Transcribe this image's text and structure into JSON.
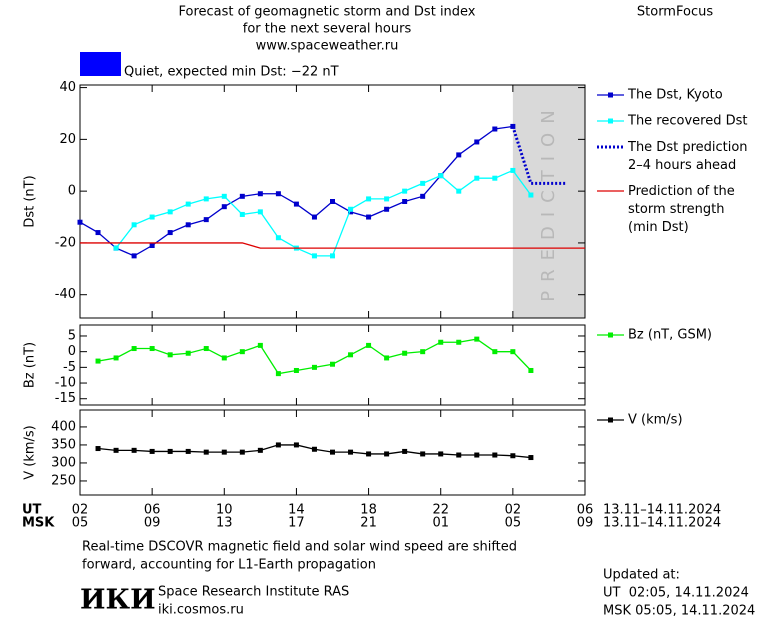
{
  "header": {
    "title_lines": [
      "Forecast of geomagnetic storm and Dst index",
      "for the next several hours",
      "www.spaceweather.ru"
    ],
    "brand": "StormFocus"
  },
  "status": {
    "color": "#0000ff",
    "text": "Quiet, expected min Dst: −22 nT"
  },
  "time_axis": {
    "ut": {
      "label": "UT",
      "range": "13.11–14.11.2024",
      "ticks": [
        {
          "value": 0,
          "label": "02"
        },
        {
          "value": 4,
          "label": "06"
        },
        {
          "value": 8,
          "label": "10"
        },
        {
          "value": 12,
          "label": "14"
        },
        {
          "value": 16,
          "label": "18"
        },
        {
          "value": 20,
          "label": "22"
        },
        {
          "value": 24,
          "label": "02"
        },
        {
          "value": 28,
          "label": "06"
        }
      ]
    },
    "msk": {
      "label": "MSK",
      "range": "13.11–14.11.2024",
      "ticks": [
        {
          "value": 0,
          "label": "05"
        },
        {
          "value": 4,
          "label": "09"
        },
        {
          "value": 8,
          "label": "13"
        },
        {
          "value": 12,
          "label": "17"
        },
        {
          "value": 16,
          "label": "21"
        },
        {
          "value": 20,
          "label": "01"
        },
        {
          "value": 24,
          "label": "05"
        },
        {
          "value": 28,
          "label": "09"
        }
      ]
    }
  },
  "chart_data": [
    {
      "type": "line",
      "y_label": "Dst (nT)",
      "xlim": [
        0,
        28
      ],
      "ylim": [
        -49,
        41
      ],
      "yticks": [
        -40,
        -20,
        0,
        20,
        40
      ],
      "prediction_zone": [
        24,
        28
      ],
      "prediction_label": "PREDICTION",
      "prediction_color": "#d9d9d9",
      "series": [
        {
          "name": "The Dst, Kyoto",
          "color": "#0000cc",
          "style": "solid",
          "marker": true,
          "x": [
            0,
            1,
            2,
            3,
            4,
            5,
            6,
            7,
            8,
            9,
            10,
            11,
            12,
            13,
            14,
            15,
            16,
            17,
            18,
            19,
            20,
            21,
            22,
            23,
            24
          ],
          "values": [
            -12,
            -16,
            -22,
            -25,
            -21,
            -16,
            -13,
            -11,
            -6,
            -2,
            -1,
            -1,
            -5,
            -10,
            -4,
            -8,
            -10,
            -7,
            -4,
            -2,
            6,
            14,
            19,
            24,
            25
          ]
        },
        {
          "name": "The recovered Dst",
          "color": "#00ffff",
          "style": "solid",
          "marker": true,
          "x": [
            2,
            3,
            4,
            5,
            6,
            7,
            8,
            9,
            10,
            11,
            12,
            13,
            14,
            15,
            16,
            17,
            18,
            19,
            20,
            21,
            22,
            23,
            24,
            25
          ],
          "values": [
            -22,
            -13,
            -10,
            -8,
            -5,
            -3,
            -2,
            -9,
            -8,
            -18,
            -22,
            -25,
            -25,
            -7,
            -3,
            -3,
            0,
            3,
            6,
            0,
            5,
            5,
            8,
            -1.5
          ]
        },
        {
          "name": "The Dst prediction\n2–4 hours ahead",
          "color": "#0000cc",
          "style": "dotted",
          "marker": false,
          "x": [
            24,
            25,
            26,
            27
          ],
          "values": [
            25,
            3,
            3,
            3
          ]
        },
        {
          "name": "Prediction of the\nstorm strength\n(min Dst)",
          "color": "#dd0000",
          "style": "solid",
          "marker": false,
          "x": [
            0,
            9,
            10,
            28
          ],
          "values": [
            -20,
            -20,
            -22,
            -22
          ]
        }
      ]
    },
    {
      "type": "line",
      "y_label": "Bz (nT)",
      "xlim": [
        0,
        28
      ],
      "ylim": [
        -17,
        8.5
      ],
      "yticks": [
        -15,
        -10,
        -5,
        0,
        5
      ],
      "series": [
        {
          "name": "Bz (nT, GSM)",
          "color": "#00ee00",
          "style": "solid",
          "marker": true,
          "x": [
            1,
            2,
            3,
            4,
            5,
            6,
            7,
            8,
            9,
            10,
            11,
            12,
            13,
            14,
            15,
            16,
            17,
            18,
            19,
            20,
            21,
            22,
            23,
            24,
            25
          ],
          "values": [
            -3,
            -2,
            1,
            1,
            -1,
            -0.5,
            1,
            -2,
            0,
            2,
            -7,
            -6,
            -5,
            -4,
            -1,
            2,
            -2,
            -0.5,
            0,
            3,
            3,
            4,
            0,
            0,
            -6
          ]
        }
      ]
    },
    {
      "type": "line",
      "y_label": "V (km/s)",
      "xlim": [
        0,
        28
      ],
      "ylim": [
        211,
        447
      ],
      "yticks": [
        250,
        300,
        350,
        400
      ],
      "series": [
        {
          "name": "V (km/s)",
          "color": "#000000",
          "style": "solid",
          "marker": true,
          "x": [
            1,
            2,
            3,
            4,
            5,
            6,
            7,
            8,
            9,
            10,
            11,
            12,
            13,
            14,
            15,
            16,
            17,
            18,
            19,
            20,
            21,
            22,
            23,
            24,
            25
          ],
          "values": [
            340,
            335,
            335,
            332,
            332,
            332,
            330,
            330,
            330,
            335,
            350,
            350,
            338,
            330,
            330,
            325,
            325,
            332,
            325,
            325,
            322,
            322,
            322,
            320,
            315
          ]
        }
      ]
    }
  ],
  "footer": {
    "note_lines": [
      "Real-time DSCOVR magnetic field and solar wind speed are shifted",
      "forward, accounting for L1-Earth propagation"
    ],
    "logo": "ИКИ",
    "institute": "Space Research Institute RAS",
    "site": "iki.cosmos.ru",
    "updated_title": "Updated at:",
    "updated_ut": "UT  02:05, 14.11.2024",
    "updated_msk": "MSK 05:05, 14.11.2024"
  }
}
